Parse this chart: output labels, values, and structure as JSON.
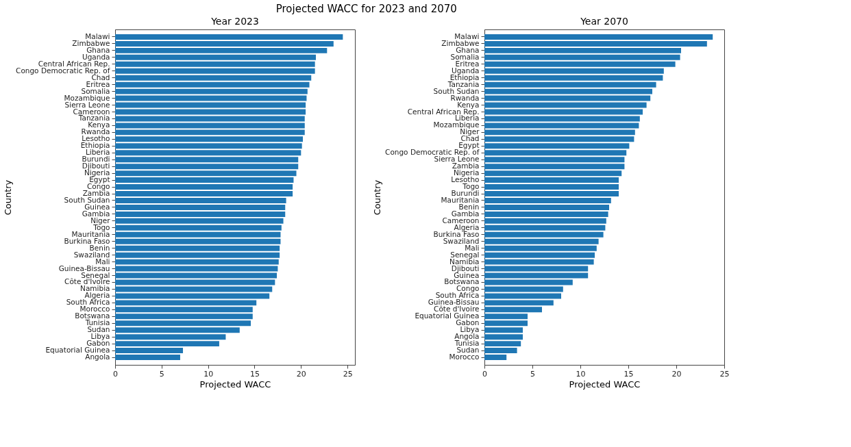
{
  "chart_data": [
    {
      "type": "bar",
      "orientation": "horizontal",
      "title": "Projected WACC for 2023 and 2070",
      "subtitle": "Year 2023",
      "xlabel": "Projected WACC",
      "ylabel": "Country",
      "color": "#1f77b4",
      "xlim": [
        0,
        25.8
      ],
      "xticks": [
        0,
        5,
        10,
        15,
        20,
        25
      ],
      "grid": false,
      "categories": [
        "Malawi",
        "Zimbabwe",
        "Ghana",
        "Uganda",
        "Central African Rep.",
        "Congo Democratic Rep. of",
        "Chad",
        "Eritrea",
        "Somalia",
        "Mozambique",
        "Sierra Leone",
        "Cameroon",
        "Tanzania",
        "Kenya",
        "Rwanda",
        "Lesotho",
        "Ethiopia",
        "Liberia",
        "Burundi",
        "Djibouti",
        "Nigeria",
        "Egypt",
        "Congo",
        "Zambia",
        "South Sudan",
        "Guinea",
        "Gambia",
        "Niger",
        "Togo",
        "Mauritania",
        "Burkina Faso",
        "Benin",
        "Swaziland",
        "Mali",
        "Guinea-Bissau",
        "Senegal",
        "Côte d'Ivoire",
        "Namibia",
        "Algeria",
        "South Africa",
        "Morocco",
        "Botswana",
        "Tunisia",
        "Sudan",
        "Libya",
        "Gabon",
        "Equatorial Guinea",
        "Angola"
      ],
      "values": [
        24.5,
        23.5,
        22.8,
        21.6,
        21.5,
        21.5,
        21.1,
        20.9,
        20.7,
        20.6,
        20.5,
        20.5,
        20.4,
        20.4,
        20.4,
        20.2,
        20.1,
        20.0,
        19.7,
        19.7,
        19.5,
        19.2,
        19.1,
        19.1,
        18.4,
        18.3,
        18.3,
        18.1,
        17.9,
        17.8,
        17.8,
        17.7,
        17.7,
        17.6,
        17.5,
        17.4,
        17.2,
        16.9,
        16.6,
        15.2,
        14.8,
        14.8,
        14.6,
        13.4,
        11.9,
        11.2,
        7.3,
        7.0
      ]
    },
    {
      "type": "bar",
      "orientation": "horizontal",
      "subtitle": "Year 2070",
      "xlabel": "Projected WACC",
      "ylabel": "Country",
      "color": "#1f77b4",
      "xlim": [
        0,
        25.0
      ],
      "xticks": [
        0,
        5,
        10,
        15,
        20,
        25
      ],
      "grid": false,
      "categories": [
        "Malawi",
        "Zimbabwe",
        "Ghana",
        "Somalia",
        "Eritrea",
        "Uganda",
        "Ethiopia",
        "Tanzania",
        "South Sudan",
        "Rwanda",
        "Kenya",
        "Central African Rep.",
        "Liberia",
        "Mozambique",
        "Niger",
        "Chad",
        "Egypt",
        "Congo Democratic Rep. of",
        "Sierra Leone",
        "Zambia",
        "Nigeria",
        "Lesotho",
        "Togo",
        "Burundi",
        "Mauritania",
        "Benin",
        "Gambia",
        "Cameroon",
        "Algeria",
        "Burkina Faso",
        "Swaziland",
        "Mali",
        "Senegal",
        "Namibia",
        "Djibouti",
        "Guinea",
        "Botswana",
        "Congo",
        "South Africa",
        "Guinea-Bissau",
        "Côte d'Ivoire",
        "Equatorial Guinea",
        "Gabon",
        "Libya",
        "Angola",
        "Tunisia",
        "Sudan",
        "Morocco"
      ],
      "values": [
        23.8,
        23.2,
        20.5,
        20.4,
        19.9,
        18.7,
        18.6,
        17.9,
        17.5,
        17.3,
        16.9,
        16.5,
        16.2,
        16.1,
        15.7,
        15.6,
        15.1,
        14.8,
        14.6,
        14.6,
        14.3,
        14.0,
        14.0,
        14.0,
        13.2,
        13.0,
        12.9,
        12.7,
        12.6,
        12.4,
        11.9,
        11.7,
        11.5,
        11.4,
        10.8,
        10.8,
        9.2,
        8.2,
        8.0,
        7.2,
        6.0,
        4.5,
        4.5,
        4.0,
        4.0,
        3.8,
        3.4,
        2.3
      ]
    }
  ]
}
